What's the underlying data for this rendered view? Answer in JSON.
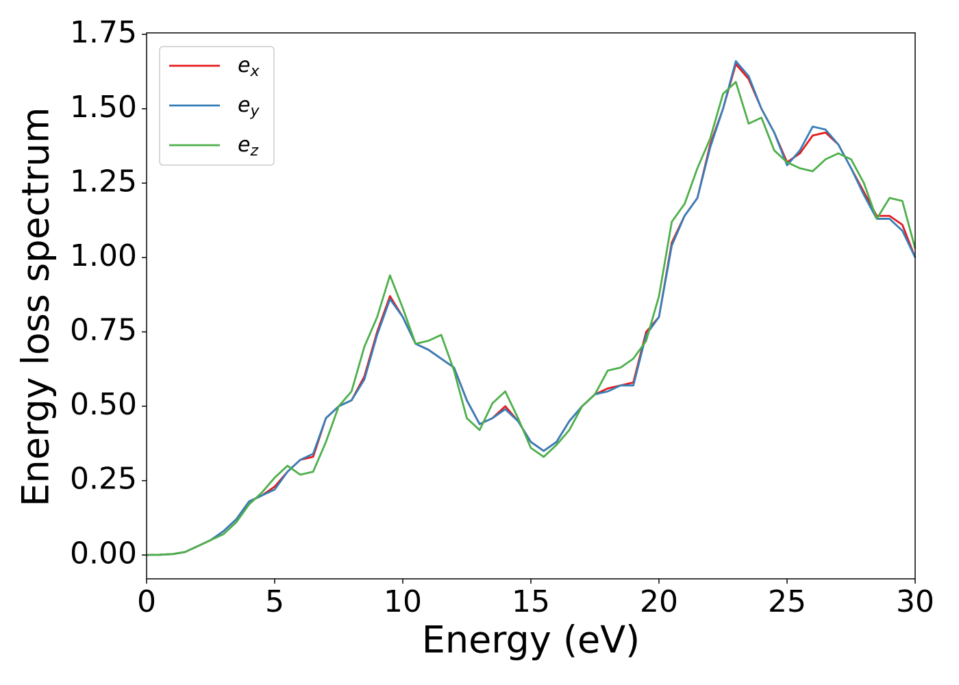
{
  "chart_data": {
    "type": "line",
    "x_label": "Energy (eV)",
    "y_label": "Energy loss spectrum",
    "x": [
      0,
      0.5,
      1,
      1.5,
      2,
      2.5,
      3,
      3.5,
      4,
      4.5,
      5,
      5.5,
      6,
      6.5,
      7,
      7.5,
      8,
      8.5,
      9,
      9.5,
      10,
      10.5,
      11,
      11.5,
      12,
      12.5,
      13,
      13.5,
      14,
      14.5,
      15,
      15.5,
      16,
      16.5,
      17,
      17.5,
      18,
      18.5,
      19,
      19.5,
      20,
      20.5,
      21,
      21.5,
      22,
      22.5,
      23,
      23.5,
      24,
      24.5,
      25,
      25.5,
      26,
      26.5,
      27,
      27.5,
      28,
      28.5,
      29,
      29.5,
      30
    ],
    "series": [
      {
        "name": "ex",
        "color": "#e41a1c",
        "values": [
          0,
          0.001,
          0.003,
          0.01,
          0.03,
          0.05,
          0.08,
          0.12,
          0.18,
          0.2,
          0.23,
          0.28,
          0.32,
          0.33,
          0.46,
          0.5,
          0.52,
          0.6,
          0.75,
          0.87,
          0.8,
          0.71,
          0.69,
          0.66,
          0.63,
          0.52,
          0.44,
          0.46,
          0.5,
          0.45,
          0.38,
          0.35,
          0.38,
          0.45,
          0.5,
          0.54,
          0.56,
          0.57,
          0.58,
          0.75,
          0.8,
          1.05,
          1.14,
          1.2,
          1.38,
          1.5,
          1.65,
          1.6,
          1.5,
          1.42,
          1.32,
          1.35,
          1.41,
          1.42,
          1.38,
          1.3,
          1.22,
          1.14,
          1.14,
          1.11,
          1.0
        ]
      },
      {
        "name": "ey",
        "color": "#377eb8",
        "values": [
          0,
          0.001,
          0.003,
          0.01,
          0.03,
          0.05,
          0.08,
          0.12,
          0.18,
          0.2,
          0.22,
          0.28,
          0.32,
          0.34,
          0.46,
          0.5,
          0.52,
          0.59,
          0.74,
          0.86,
          0.8,
          0.71,
          0.69,
          0.66,
          0.63,
          0.52,
          0.44,
          0.46,
          0.49,
          0.45,
          0.38,
          0.35,
          0.38,
          0.45,
          0.5,
          0.54,
          0.55,
          0.57,
          0.57,
          0.74,
          0.8,
          1.04,
          1.14,
          1.2,
          1.37,
          1.5,
          1.66,
          1.61,
          1.5,
          1.42,
          1.31,
          1.36,
          1.44,
          1.43,
          1.38,
          1.3,
          1.21,
          1.13,
          1.13,
          1.09,
          1.0
        ]
      },
      {
        "name": "ez",
        "color": "#4daf4a",
        "values": [
          0,
          0.001,
          0.003,
          0.01,
          0.03,
          0.05,
          0.07,
          0.11,
          0.17,
          0.21,
          0.26,
          0.3,
          0.27,
          0.28,
          0.38,
          0.5,
          0.55,
          0.7,
          0.8,
          0.94,
          0.83,
          0.71,
          0.72,
          0.74,
          0.62,
          0.46,
          0.42,
          0.51,
          0.55,
          0.46,
          0.36,
          0.33,
          0.37,
          0.42,
          0.5,
          0.54,
          0.62,
          0.63,
          0.66,
          0.72,
          0.87,
          1.12,
          1.18,
          1.3,
          1.4,
          1.55,
          1.59,
          1.45,
          1.47,
          1.36,
          1.32,
          1.3,
          1.29,
          1.33,
          1.35,
          1.33,
          1.25,
          1.13,
          1.2,
          1.19,
          1.03
        ]
      }
    ],
    "xlim": [
      0,
      30
    ],
    "xticks": [
      0,
      5,
      10,
      15,
      20,
      25,
      30
    ],
    "ylim": [
      -0.08,
      1.755
    ],
    "yticks": [
      {
        "value": 0,
        "label": "0.00"
      },
      0.25,
      {
        "value": 0.5,
        "label": "0.50"
      },
      0.75,
      {
        "value": 1,
        "label": "1.00"
      },
      1.25,
      {
        "value": 1.5,
        "label": "1.50"
      },
      1.75
    ],
    "legend": "upper left",
    "grid": false
  }
}
